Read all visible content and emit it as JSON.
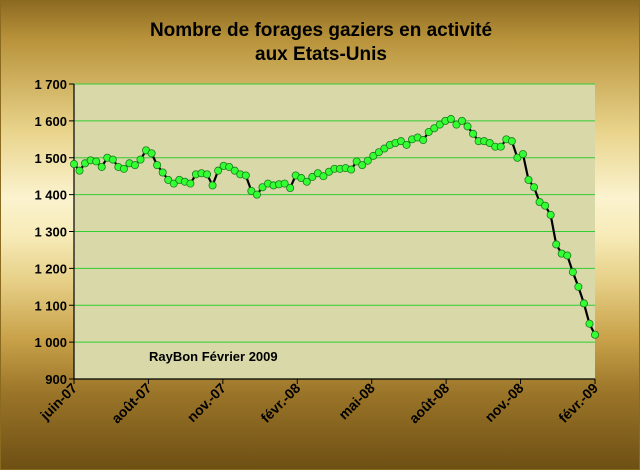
{
  "title_lines": [
    "Nombre de forages gaziers en activité",
    "aux Etats-Unis"
  ],
  "annotation": "RayBon  Février 2009",
  "colors": {
    "plot_bg": "#d8d8a8",
    "gridline": "#33cc33",
    "line": "#000000",
    "marker_fill": "#33ff33",
    "marker_stroke": "#1a7a1a"
  },
  "chart_data": {
    "type": "line",
    "title": "Nombre de forages gaziers en activité aux Etats-Unis",
    "xlabel": "",
    "ylabel": "",
    "ylim": [
      900,
      1700
    ],
    "yticks": [
      900,
      1000,
      1100,
      1200,
      1300,
      1400,
      1500,
      1600,
      1700
    ],
    "ytick_labels": [
      "900",
      "1 000",
      "1 100",
      "1 200",
      "1 300",
      "1 400",
      "1 500",
      "1 600",
      "1 700"
    ],
    "xticks": [
      "juin-07",
      "août-07",
      "nov.-07",
      "févr.-08",
      "mai-08",
      "août-08",
      "nov.-08",
      "févr.-09"
    ],
    "grid": true,
    "legend": "none",
    "series": [
      {
        "values": [
          1483,
          1465,
          1485,
          1493,
          1490,
          1475,
          1500,
          1495,
          1475,
          1470,
          1485,
          1480,
          1495,
          1520,
          1512,
          1480,
          1460,
          1440,
          1430,
          1440,
          1435,
          1430,
          1455,
          1458,
          1455,
          1425,
          1465,
          1478,
          1475,
          1465,
          1455,
          1452,
          1410,
          1400,
          1420,
          1430,
          1425,
          1428,
          1430,
          1418,
          1452,
          1445,
          1435,
          1448,
          1458,
          1450,
          1462,
          1470,
          1470,
          1472,
          1468,
          1490,
          1480,
          1492,
          1505,
          1515,
          1525,
          1535,
          1540,
          1545,
          1535,
          1550,
          1555,
          1548,
          1570,
          1580,
          1590,
          1600,
          1605,
          1590,
          1600,
          1585,
          1565,
          1545,
          1545,
          1540,
          1530,
          1530,
          1550,
          1545,
          1500,
          1510,
          1440,
          1420,
          1380,
          1370,
          1345,
          1265,
          1240,
          1235,
          1190,
          1150,
          1105,
          1050,
          1020
        ]
      }
    ]
  }
}
